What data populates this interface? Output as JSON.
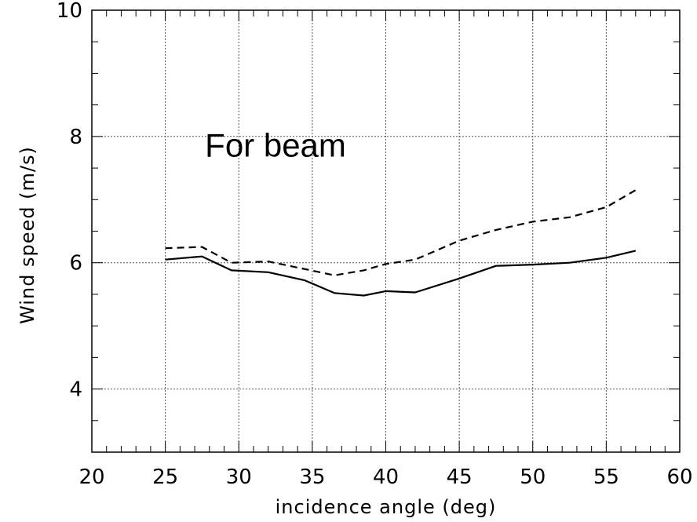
{
  "chart_data": {
    "type": "line",
    "title": "",
    "xlabel": "incidence angle (deg)",
    "ylabel": "Wind speed (m/s)",
    "xlim": [
      20,
      60
    ],
    "ylim": [
      3,
      10
    ],
    "x_ticks": [
      20,
      25,
      30,
      35,
      40,
      45,
      50,
      55,
      60
    ],
    "y_ticks": [
      4,
      6,
      8,
      10
    ],
    "grid": true,
    "annotation": "For beam",
    "series": [
      {
        "style": "solid",
        "color": "#000000",
        "x": [
          25,
          27.5,
          29.5,
          32,
          34.5,
          36.5,
          38.5,
          40,
          42,
          45,
          47.5,
          50,
          52.5,
          55,
          57
        ],
        "y": [
          6.05,
          6.1,
          5.88,
          5.85,
          5.72,
          5.52,
          5.48,
          5.55,
          5.53,
          5.75,
          5.95,
          5.97,
          6.0,
          6.08,
          6.19
        ]
      },
      {
        "style": "dashed",
        "color": "#000000",
        "x": [
          25,
          27.5,
          29.5,
          32,
          34.5,
          36.5,
          38.5,
          40,
          42,
          45,
          47.5,
          50,
          52.5,
          55,
          57
        ],
        "y": [
          6.23,
          6.25,
          6.0,
          6.02,
          5.9,
          5.8,
          5.88,
          5.98,
          6.05,
          6.35,
          6.52,
          6.65,
          6.72,
          6.88,
          7.15
        ]
      }
    ]
  }
}
